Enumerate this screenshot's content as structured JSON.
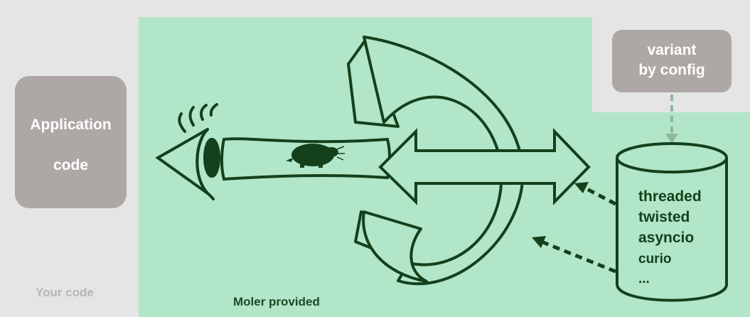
{
  "application_box": {
    "line1": "Application",
    "line2": "code"
  },
  "variant_box": {
    "line1": "variant",
    "line2": "by config"
  },
  "captions": {
    "your_code": "Your code",
    "moler_provided": "Moler provided"
  },
  "runners": [
    "threaded",
    "twisted",
    "asyncio",
    "curio",
    "..."
  ],
  "colors": {
    "background": "#e5e5e5",
    "moler_area": "#b2e6c8",
    "gray_box": "#ada8a5",
    "dark_green": "#14401b",
    "dashed_gray_green": "#8fb89b"
  },
  "icons": [
    "eye-icon",
    "mole-icon",
    "loop-arrow-icon",
    "double-arrow-icon",
    "database-cylinder-icon"
  ]
}
